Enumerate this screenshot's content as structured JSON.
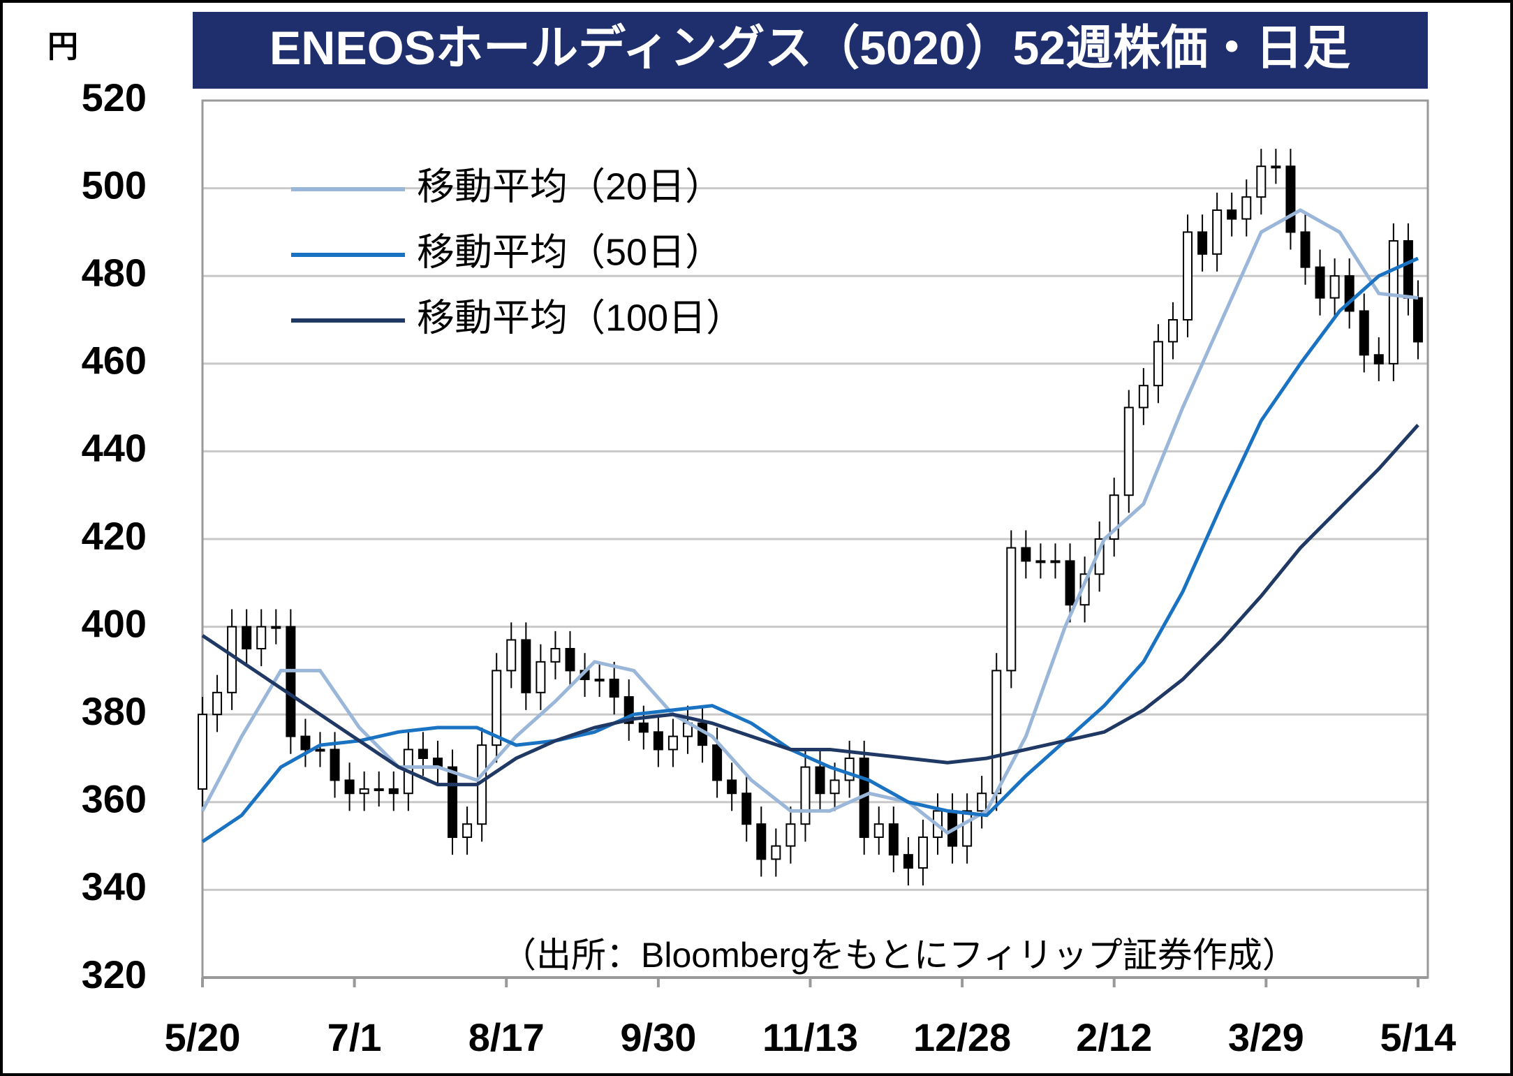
{
  "chart_data": {
    "type": "candlestick",
    "title": "ENEOSホールディングス（5020）52週株価・日足",
    "y_label": "円",
    "annotation": "（出所：Bloombergをもとにフィリップ証券作成）",
    "xlim": [
      0,
      250
    ],
    "xticks": [
      {
        "value": 0,
        "label": "5/20"
      },
      {
        "value": 31,
        "label": "7/1"
      },
      {
        "value": 62,
        "label": "8/17"
      },
      {
        "value": 93,
        "label": "9/30"
      },
      {
        "value": 124,
        "label": "11/13"
      },
      {
        "value": 155,
        "label": "12/28"
      },
      {
        "value": 186,
        "label": "2/12"
      },
      {
        "value": 217,
        "label": "3/29"
      },
      {
        "value": 248,
        "label": "5/14"
      }
    ],
    "ylim": [
      320,
      520
    ],
    "yticks": [
      320,
      340,
      360,
      380,
      400,
      420,
      440,
      460,
      480,
      500,
      520
    ],
    "grid": true,
    "up_color": "#ffffff",
    "down_color": "#000000",
    "x": [
      0,
      3,
      6,
      9,
      12,
      15,
      18,
      21,
      24,
      27,
      30,
      33,
      36,
      39,
      42,
      45,
      48,
      51,
      54,
      57,
      60,
      63,
      66,
      69,
      72,
      75,
      78,
      81,
      84,
      87,
      90,
      93,
      96,
      99,
      102,
      105,
      108,
      111,
      114,
      117,
      120,
      123,
      126,
      129,
      132,
      135,
      138,
      141,
      144,
      147,
      150,
      153,
      156,
      159,
      162,
      165,
      168,
      171,
      174,
      177,
      180,
      183,
      186,
      189,
      192,
      195,
      198,
      201,
      204,
      207,
      210,
      213,
      216,
      219,
      222,
      225,
      228,
      231,
      234,
      237,
      240,
      243,
      246,
      248
    ],
    "open": [
      363,
      380,
      385,
      400,
      395,
      400,
      400,
      375,
      372,
      372,
      365,
      362,
      363,
      363,
      362,
      372,
      370,
      368,
      352,
      355,
      373,
      390,
      397,
      385,
      392,
      395,
      390,
      388,
      388,
      384,
      378,
      376,
      372,
      375,
      378,
      373,
      365,
      362,
      355,
      347,
      350,
      355,
      368,
      362,
      365,
      370,
      352,
      355,
      348,
      345,
      352,
      358,
      350,
      358,
      362,
      390,
      418,
      415,
      415,
      415,
      405,
      412,
      420,
      430,
      450,
      455,
      465,
      470,
      490,
      485,
      495,
      493,
      498,
      505,
      505,
      490,
      482,
      475,
      480,
      472,
      462,
      460,
      488,
      475
    ],
    "high": [
      384,
      389,
      404,
      404,
      404,
      404,
      404,
      379,
      376,
      376,
      369,
      367,
      367,
      367,
      376,
      376,
      374,
      372,
      359,
      377,
      394,
      401,
      401,
      396,
      399,
      399,
      394,
      392,
      392,
      388,
      382,
      380,
      379,
      382,
      382,
      377,
      369,
      366,
      359,
      354,
      359,
      372,
      372,
      369,
      374,
      374,
      359,
      359,
      352,
      356,
      362,
      362,
      362,
      366,
      394,
      422,
      422,
      419,
      419,
      419,
      416,
      424,
      434,
      454,
      459,
      469,
      474,
      494,
      494,
      499,
      499,
      502,
      509,
      509,
      509,
      494,
      486,
      484,
      484,
      476,
      466,
      492,
      492,
      479
    ],
    "low": [
      359,
      376,
      381,
      391,
      391,
      396,
      371,
      368,
      368,
      361,
      358,
      358,
      359,
      358,
      358,
      366,
      364,
      348,
      348,
      351,
      369,
      386,
      381,
      381,
      388,
      386,
      384,
      384,
      380,
      374,
      372,
      368,
      368,
      371,
      369,
      361,
      358,
      351,
      343,
      343,
      346,
      351,
      358,
      358,
      361,
      348,
      348,
      344,
      341,
      341,
      348,
      346,
      346,
      354,
      358,
      386,
      411,
      411,
      411,
      401,
      401,
      408,
      416,
      426,
      446,
      451,
      461,
      466,
      481,
      481,
      489,
      489,
      494,
      501,
      486,
      478,
      471,
      471,
      468,
      458,
      456,
      456,
      471,
      461
    ],
    "close": [
      380,
      385,
      400,
      395,
      400,
      400,
      375,
      372,
      372,
      365,
      362,
      363,
      363,
      362,
      372,
      370,
      368,
      352,
      355,
      373,
      390,
      397,
      385,
      392,
      395,
      390,
      388,
      388,
      384,
      378,
      376,
      372,
      375,
      378,
      373,
      365,
      362,
      355,
      347,
      350,
      355,
      368,
      362,
      365,
      370,
      352,
      355,
      348,
      345,
      352,
      358,
      350,
      358,
      362,
      390,
      418,
      415,
      415,
      415,
      405,
      412,
      420,
      430,
      450,
      455,
      465,
      470,
      490,
      485,
      495,
      493,
      498,
      505,
      505,
      490,
      482,
      475,
      480,
      472,
      462,
      460,
      488,
      475,
      465
    ],
    "series": [
      {
        "name": "移動平均（20日）",
        "color": "#9ab6d8",
        "x": [
          0,
          8,
          16,
          24,
          32,
          40,
          48,
          56,
          64,
          72,
          80,
          88,
          96,
          104,
          112,
          120,
          128,
          136,
          144,
          152,
          160,
          168,
          176,
          184,
          192,
          200,
          208,
          216,
          224,
          232,
          240,
          248
        ],
        "values": [
          358,
          375,
          390,
          390,
          377,
          368,
          368,
          365,
          375,
          383,
          392,
          390,
          380,
          375,
          365,
          358,
          358,
          362,
          360,
          353,
          358,
          375,
          400,
          420,
          428,
          450,
          470,
          490,
          495,
          490,
          476,
          475
        ]
      },
      {
        "name": "移動平均（50日）",
        "color": "#1a73c2",
        "x": [
          0,
          8,
          16,
          24,
          32,
          40,
          48,
          56,
          64,
          72,
          80,
          88,
          96,
          104,
          112,
          120,
          128,
          136,
          144,
          152,
          160,
          168,
          176,
          184,
          192,
          200,
          208,
          216,
          224,
          232,
          240,
          248
        ],
        "values": [
          351,
          357,
          368,
          373,
          374,
          376,
          377,
          377,
          373,
          374,
          376,
          380,
          381,
          382,
          378,
          372,
          368,
          365,
          360,
          358,
          357,
          366,
          374,
          382,
          392,
          408,
          428,
          447,
          460,
          472,
          480,
          484
        ]
      },
      {
        "name": "移動平均（100日）",
        "color": "#1f3864",
        "x": [
          0,
          8,
          16,
          24,
          32,
          40,
          48,
          56,
          64,
          72,
          80,
          88,
          96,
          104,
          112,
          120,
          128,
          136,
          144,
          152,
          160,
          168,
          176,
          184,
          192,
          200,
          208,
          216,
          224,
          232,
          240,
          248
        ],
        "values": [
          398,
          392,
          386,
          380,
          374,
          368,
          364,
          364,
          370,
          374,
          377,
          379,
          380,
          378,
          375,
          372,
          372,
          371,
          370,
          369,
          370,
          372,
          374,
          376,
          381,
          388,
          397,
          407,
          418,
          427,
          436,
          446
        ]
      }
    ]
  }
}
